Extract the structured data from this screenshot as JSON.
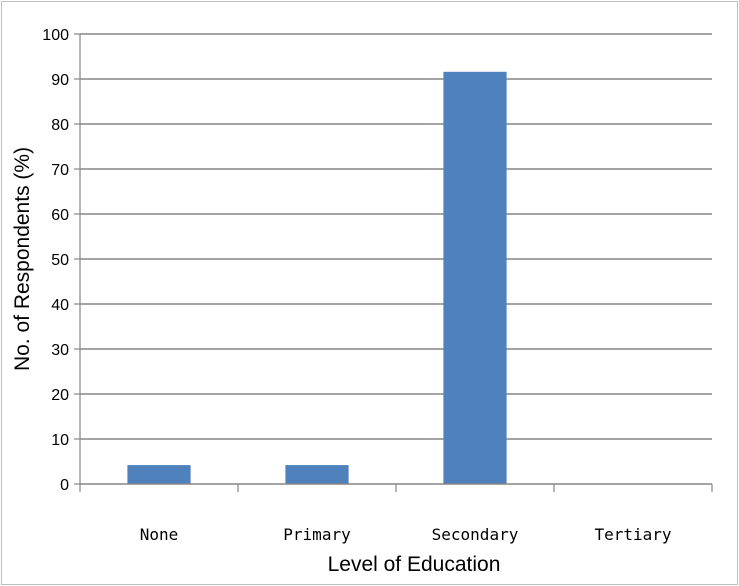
{
  "chart_data": {
    "type": "bar",
    "title": "",
    "xlabel": "Level of Education",
    "ylabel": "No. of Respondents (%)",
    "categories": [
      "None",
      "Primary",
      "Secondary",
      "Tertiary"
    ],
    "series": [
      {
        "values": [
          4.2,
          4.2,
          91.6,
          0
        ],
        "color": "#4f81bd"
      }
    ],
    "ylim": [
      0,
      100
    ],
    "yticks": [
      0,
      10,
      20,
      30,
      40,
      50,
      60,
      70,
      80,
      90,
      100
    ],
    "grid": "horizontal",
    "legend": "none",
    "colors": {
      "bar": "#4f81bd",
      "grid": "#868686",
      "axis": "#868686",
      "border": "#bfbfbf"
    }
  }
}
